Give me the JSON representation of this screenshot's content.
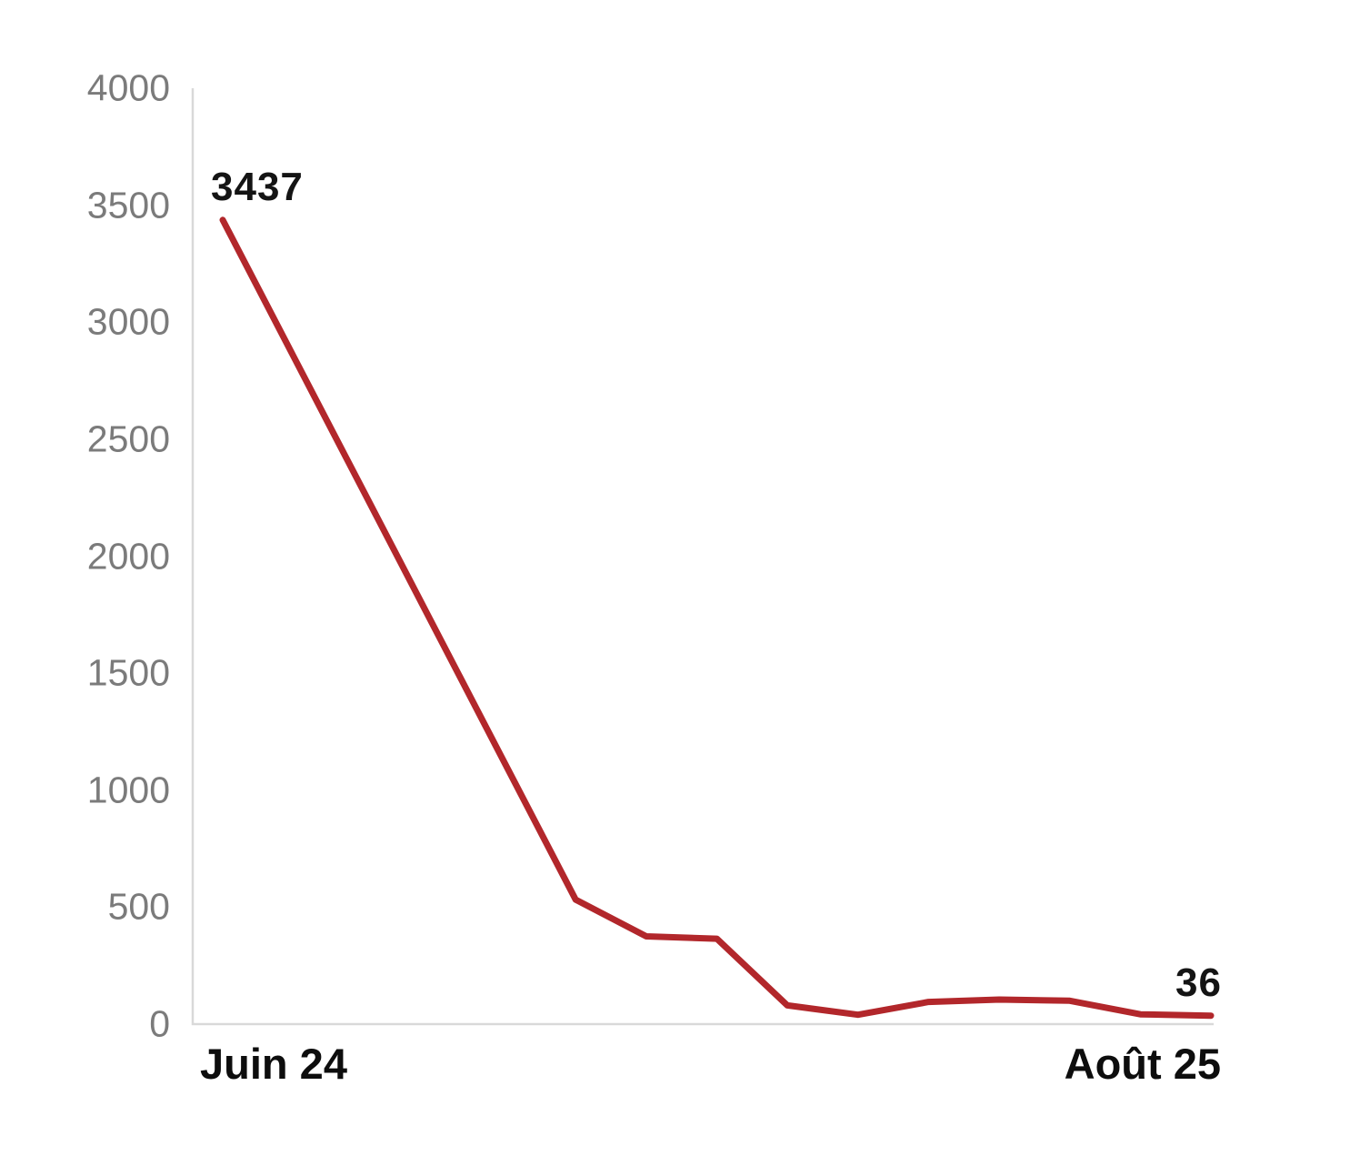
{
  "chart_data": {
    "type": "line",
    "title": "",
    "xlabel": "",
    "ylabel": "",
    "x_tick_labels": {
      "start": "Juin 24",
      "end": "Août 25"
    },
    "values": [
      3437,
      2856,
      2275,
      1694,
      1113,
      532,
      375,
      365,
      80,
      40,
      95,
      105,
      100,
      42,
      36
    ],
    "first_point_label": "3437",
    "last_point_label": "36",
    "y_ticks": [
      "0",
      "500",
      "1000",
      "1500",
      "2000",
      "2500",
      "3000",
      "3500",
      "4000"
    ],
    "y_tick_values": [
      0,
      500,
      1000,
      1500,
      2000,
      2500,
      3000,
      3500,
      4000
    ],
    "ylim": [
      0,
      4000
    ],
    "grid": false,
    "legend_position": "none",
    "line_color": "#b2272b",
    "axis_color": "#d9d9d9",
    "tick_label_color": "#7b7b7b",
    "data_label_color": "#141414",
    "x_label_color": "#0d0d0d"
  }
}
